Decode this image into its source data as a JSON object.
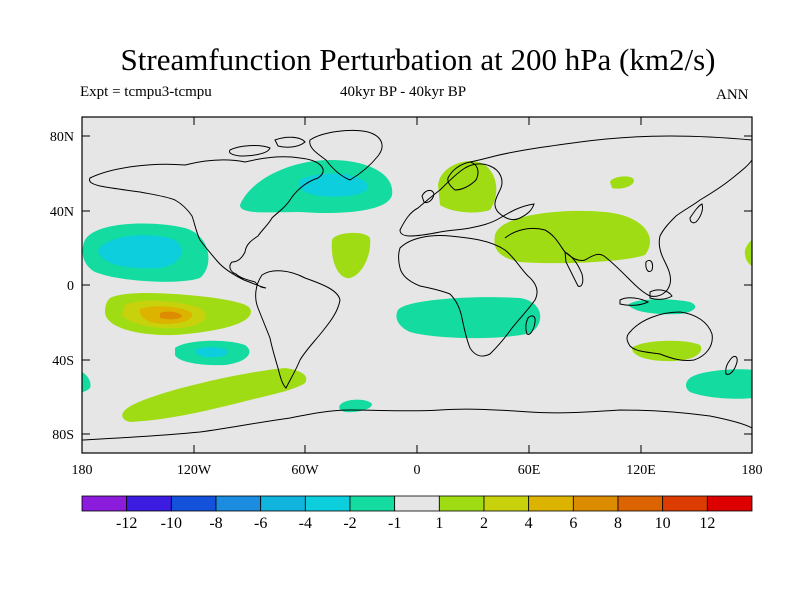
{
  "title": "Streamfunction Perturbation at 200 hPa (km2/s)",
  "experiment": "Expt = tcmpu3-tcmpu",
  "period": "40kyr BP - 40kyr BP",
  "season": "ANN",
  "lat_labels": [
    "80N",
    "40N",
    "0",
    "40S",
    "80S"
  ],
  "lon_labels": [
    "180",
    "120W",
    "60W",
    "0",
    "60E",
    "120E",
    "180"
  ],
  "colorbar": {
    "labels": [
      "-12",
      "-10",
      "-8",
      "-6",
      "-4",
      "-2",
      "-1",
      "1",
      "2",
      "4",
      "6",
      "8",
      "10",
      "12"
    ],
    "colors": [
      "#8c1cdc",
      "#3c1ce0",
      "#1452dc",
      "#1c8ce0",
      "#10b4dc",
      "#0ccedc",
      "#14dca0",
      "#e6e6e6",
      "#a0dc14",
      "#c8d20c",
      "#dcb400",
      "#dc8c00",
      "#dc6400",
      "#dc3c00",
      "#dc0000"
    ]
  },
  "map_colors": {
    "background": "#e6e6e6",
    "pos1": "#a0dc14",
    "pos2": "#c8d20c",
    "pos3": "#dcb400",
    "pos4": "#dc8c00",
    "neg1": "#14dca0",
    "neg2": "#0ccedc"
  }
}
